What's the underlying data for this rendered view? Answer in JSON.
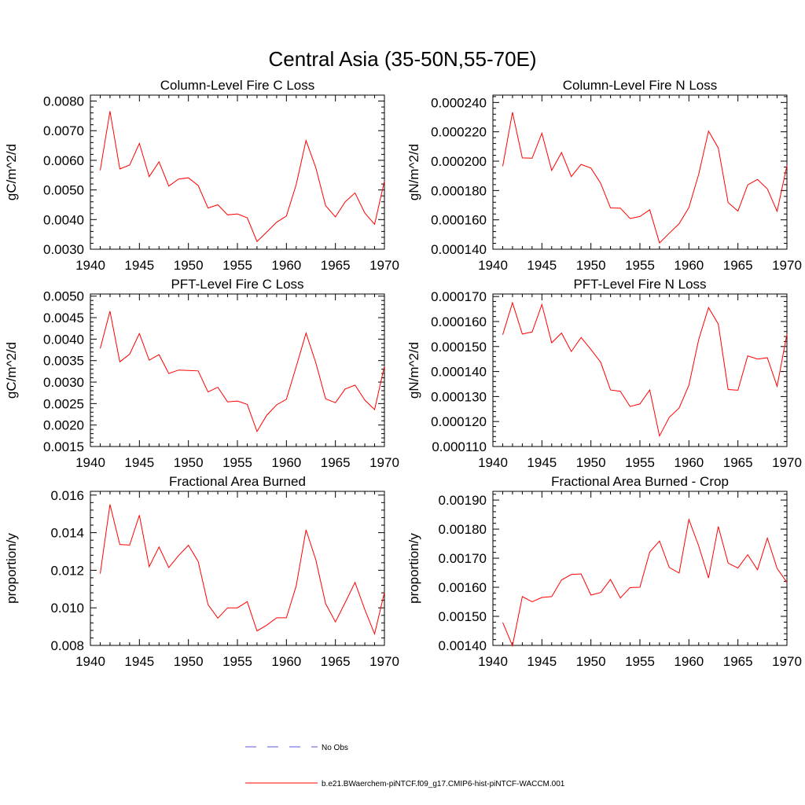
{
  "figure": {
    "title": "Central Asia (35-50N,55-70E)"
  },
  "legend": {
    "entries": [
      {
        "label": "No Obs",
        "color": "#5a5adc",
        "style": "dashed"
      },
      {
        "label": "b.e21.BWaerchem-piNTCF.f09_g17.CMIP6-hist-piNTCF-WACCM.001",
        "color": "#ff0000",
        "style": "solid"
      }
    ]
  },
  "colors": {
    "series": "#ff0000",
    "no_obs": "#5a5adc",
    "axis": "#000000"
  },
  "chart_data": [
    {
      "type": "line",
      "title": "Column-Level Fire C Loss",
      "xlabel": "",
      "ylabel": "gC/m^2/d",
      "xlim": [
        1940,
        1970
      ],
      "ylim": [
        0.003,
        0.0082
      ],
      "xticks": [
        1940,
        1945,
        1950,
        1955,
        1960,
        1965,
        1970
      ],
      "xtick_labels": [
        "1940",
        "1945",
        "1950",
        "1955",
        "1960",
        "1965",
        "1970"
      ],
      "yticks": [
        0.003,
        0.004,
        0.005,
        0.006,
        0.007,
        0.008
      ],
      "ytick_labels": [
        "0.0030",
        "0.0040",
        "0.0050",
        "0.0060",
        "0.0070",
        "0.0080"
      ],
      "grid": false,
      "x": [
        1941,
        1942,
        1943,
        1944,
        1945,
        1946,
        1947,
        1948,
        1949,
        1950,
        1951,
        1952,
        1953,
        1954,
        1955,
        1956,
        1957,
        1958,
        1959,
        1960,
        1961,
        1962,
        1963,
        1964,
        1965,
        1966,
        1967,
        1968,
        1969,
        1970
      ],
      "series": [
        {
          "values": [
            0.00566,
            0.00766,
            0.00571,
            0.00584,
            0.00657,
            0.00545,
            0.00595,
            0.00513,
            0.00537,
            0.00541,
            0.00515,
            0.00439,
            0.0045,
            0.00416,
            0.00419,
            0.00406,
            0.00326,
            0.00358,
            0.00391,
            0.00412,
            0.00518,
            0.00667,
            0.00575,
            0.00447,
            0.00409,
            0.0046,
            0.0049,
            0.00422,
            0.00384,
            0.0053
          ]
        }
      ]
    },
    {
      "type": "line",
      "title": "Column-Level Fire N Loss",
      "xlabel": "",
      "ylabel": "gN/m^2/d",
      "xlim": [
        1940,
        1970
      ],
      "ylim": [
        0.00014,
        0.000245
      ],
      "xticks": [
        1940,
        1945,
        1950,
        1955,
        1960,
        1965,
        1970
      ],
      "xtick_labels": [
        "1940",
        "1945",
        "1950",
        "1955",
        "1960",
        "1965",
        "1970"
      ],
      "yticks": [
        0.00014,
        0.00016,
        0.00018,
        0.0002,
        0.00022,
        0.00024
      ],
      "ytick_labels": [
        "0.000140",
        "0.000160",
        "0.000180",
        "0.000200",
        "0.000220",
        "0.000240"
      ],
      "grid": false,
      "x": [
        1941,
        1942,
        1943,
        1944,
        1945,
        1946,
        1947,
        1948,
        1949,
        1950,
        1951,
        1952,
        1953,
        1954,
        1955,
        1956,
        1957,
        1958,
        1959,
        1960,
        1961,
        1962,
        1963,
        1964,
        1965,
        1966,
        1967,
        1968,
        1969,
        1970
      ],
      "series": [
        {
          "values": [
            0.0001965,
            0.0002333,
            0.0002022,
            0.000202,
            0.000219,
            0.0001937,
            0.0002059,
            0.0001895,
            0.0001978,
            0.0001953,
            0.0001849,
            0.0001681,
            0.000168,
            0.0001609,
            0.0001623,
            0.0001669,
            0.0001443,
            0.0001509,
            0.0001574,
            0.0001684,
            0.0001911,
            0.0002205,
            0.000209,
            0.0001718,
            0.000166,
            0.0001838,
            0.0001875,
            0.0001811,
            0.0001659,
            0.000197
          ]
        }
      ]
    },
    {
      "type": "line",
      "title": "PFT-Level Fire C Loss",
      "xlabel": "",
      "ylabel": "gC/m^2/d",
      "xlim": [
        1940,
        1970
      ],
      "ylim": [
        0.0015,
        0.00505
      ],
      "xticks": [
        1940,
        1945,
        1950,
        1955,
        1960,
        1965,
        1970
      ],
      "xtick_labels": [
        "1940",
        "1945",
        "1950",
        "1955",
        "1960",
        "1965",
        "1970"
      ],
      "yticks": [
        0.0015,
        0.002,
        0.0025,
        0.003,
        0.0035,
        0.004,
        0.0045,
        0.005
      ],
      "ytick_labels": [
        "0.0015",
        "0.0020",
        "0.0025",
        "0.0030",
        "0.0035",
        "0.0040",
        "0.0045",
        "0.0050"
      ],
      "grid": false,
      "x": [
        1941,
        1942,
        1943,
        1944,
        1945,
        1946,
        1947,
        1948,
        1949,
        1950,
        1951,
        1952,
        1953,
        1954,
        1955,
        1956,
        1957,
        1958,
        1959,
        1960,
        1961,
        1962,
        1963,
        1964,
        1965,
        1966,
        1967,
        1968,
        1969,
        1970
      ],
      "series": [
        {
          "values": [
            0.00378,
            0.00465,
            0.00347,
            0.00365,
            0.00413,
            0.00351,
            0.00364,
            0.0032,
            0.00328,
            0.00327,
            0.00326,
            0.00277,
            0.00288,
            0.00254,
            0.00256,
            0.00248,
            0.00185,
            0.00223,
            0.00247,
            0.0026,
            0.00336,
            0.00414,
            0.00345,
            0.00261,
            0.00252,
            0.00284,
            0.00293,
            0.00258,
            0.00236,
            0.00337
          ]
        }
      ]
    },
    {
      "type": "line",
      "title": "PFT-Level Fire N Loss",
      "xlabel": "",
      "ylabel": "gN/m^2/d",
      "xlim": [
        1940,
        1970
      ],
      "ylim": [
        0.00011,
        0.000171
      ],
      "xticks": [
        1940,
        1945,
        1950,
        1955,
        1960,
        1965,
        1970
      ],
      "xtick_labels": [
        "1940",
        "1945",
        "1950",
        "1955",
        "1960",
        "1965",
        "1970"
      ],
      "yticks": [
        0.00011,
        0.00012,
        0.00013,
        0.00014,
        0.00015,
        0.00016,
        0.00017
      ],
      "ytick_labels": [
        "0.000110",
        "0.000120",
        "0.000130",
        "0.000140",
        "0.000150",
        "0.000160",
        "0.000170"
      ],
      "grid": false,
      "x": [
        1941,
        1942,
        1943,
        1944,
        1945,
        1946,
        1947,
        1948,
        1949,
        1950,
        1951,
        1952,
        1953,
        1954,
        1955,
        1956,
        1957,
        1958,
        1959,
        1960,
        1961,
        1962,
        1963,
        1964,
        1965,
        1966,
        1967,
        1968,
        1969,
        1970
      ],
      "series": [
        {
          "values": [
            0.0001547,
            0.0001675,
            0.000155,
            0.0001558,
            0.0001668,
            0.0001515,
            0.0001554,
            0.000148,
            0.0001536,
            0.0001488,
            0.0001437,
            0.0001326,
            0.0001321,
            0.000126,
            0.000127,
            0.0001326,
            0.0001142,
            0.0001217,
            0.0001254,
            0.0001345,
            0.0001528,
            0.0001656,
            0.000159,
            0.0001328,
            0.0001325,
            0.0001463,
            0.000145,
            0.0001455,
            0.0001341,
            0.0001549
          ]
        }
      ]
    },
    {
      "type": "line",
      "title": "Fractional Area Burned",
      "xlabel": "",
      "ylabel": "proportion/y",
      "xlim": [
        1940,
        1970
      ],
      "ylim": [
        0.008,
        0.0162
      ],
      "xticks": [
        1940,
        1945,
        1950,
        1955,
        1960,
        1965,
        1970
      ],
      "xtick_labels": [
        "1940",
        "1945",
        "1950",
        "1955",
        "1960",
        "1965",
        "1970"
      ],
      "yticks": [
        0.008,
        0.01,
        0.012,
        0.014,
        0.016
      ],
      "ytick_labels": [
        "0.008",
        "0.010",
        "0.012",
        "0.014",
        "0.016"
      ],
      "grid": false,
      "x": [
        1941,
        1942,
        1943,
        1944,
        1945,
        1946,
        1947,
        1948,
        1949,
        1950,
        1951,
        1952,
        1953,
        1954,
        1955,
        1956,
        1957,
        1958,
        1959,
        1960,
        1961,
        1962,
        1963,
        1964,
        1965,
        1966,
        1967,
        1968,
        1969,
        1970
      ],
      "series": [
        {
          "values": [
            0.01182,
            0.0155,
            0.01337,
            0.01334,
            0.01493,
            0.01219,
            0.01324,
            0.01214,
            0.01278,
            0.01333,
            0.01247,
            0.01017,
            0.00945,
            0.01,
            0.01,
            0.01033,
            0.00877,
            0.00908,
            0.00947,
            0.00947,
            0.01117,
            0.01415,
            0.01256,
            0.01022,
            0.00925,
            0.01028,
            0.01135,
            0.0099,
            0.00861,
            0.01082
          ]
        }
      ]
    },
    {
      "type": "line",
      "title": "Fractional Area Burned - Crop",
      "xlabel": "",
      "ylabel": "proportion/y",
      "xlim": [
        1940,
        1970
      ],
      "ylim": [
        0.0014,
        0.00193
      ],
      "xticks": [
        1940,
        1945,
        1950,
        1955,
        1960,
        1965,
        1970
      ],
      "xtick_labels": [
        "1940",
        "1945",
        "1950",
        "1955",
        "1960",
        "1965",
        "1970"
      ],
      "yticks": [
        0.0014,
        0.0015,
        0.0016,
        0.0017,
        0.0018,
        0.0019
      ],
      "ytick_labels": [
        "0.00140",
        "0.00150",
        "0.00160",
        "0.00170",
        "0.00180",
        "0.00190"
      ],
      "grid": false,
      "x": [
        1941,
        1942,
        1943,
        1944,
        1945,
        1946,
        1947,
        1948,
        1949,
        1950,
        1951,
        1952,
        1953,
        1954,
        1955,
        1956,
        1957,
        1958,
        1959,
        1960,
        1961,
        1962,
        1963,
        1964,
        1965,
        1966,
        1967,
        1968,
        1969,
        1970
      ],
      "series": [
        {
          "values": [
            0.001479,
            0.001399,
            0.001568,
            0.00155,
            0.001565,
            0.001568,
            0.001625,
            0.001644,
            0.001646,
            0.001573,
            0.001582,
            0.001627,
            0.001563,
            0.001599,
            0.0016,
            0.001721,
            0.001759,
            0.001668,
            0.001649,
            0.001833,
            0.001742,
            0.001632,
            0.001809,
            0.001683,
            0.001666,
            0.001712,
            0.00166,
            0.001769,
            0.001665,
            0.001617
          ]
        }
      ]
    }
  ]
}
